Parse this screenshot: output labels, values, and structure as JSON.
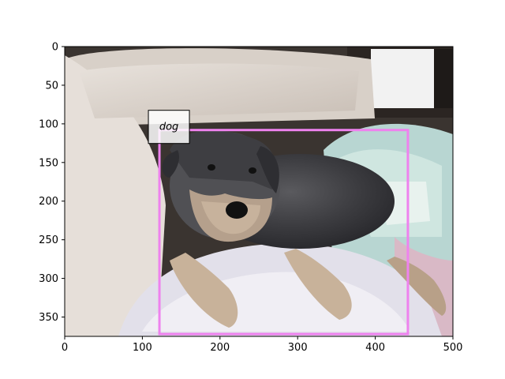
{
  "chart_data": {
    "type": "image",
    "image_description": "photo of a grey schnauzer dog lying on a light couch with a blanket",
    "xlim": [
      0,
      500
    ],
    "ylim": [
      375,
      0
    ],
    "x_ticks": [
      0,
      100,
      200,
      300,
      400,
      500
    ],
    "y_ticks": [
      0,
      50,
      100,
      150,
      200,
      250,
      300,
      350
    ],
    "grid": false,
    "annotations": [
      {
        "label": "dog",
        "x_min": 122,
        "y_min": 108,
        "x_max": 442,
        "y_max": 372,
        "color": "#ee82ee"
      }
    ]
  }
}
